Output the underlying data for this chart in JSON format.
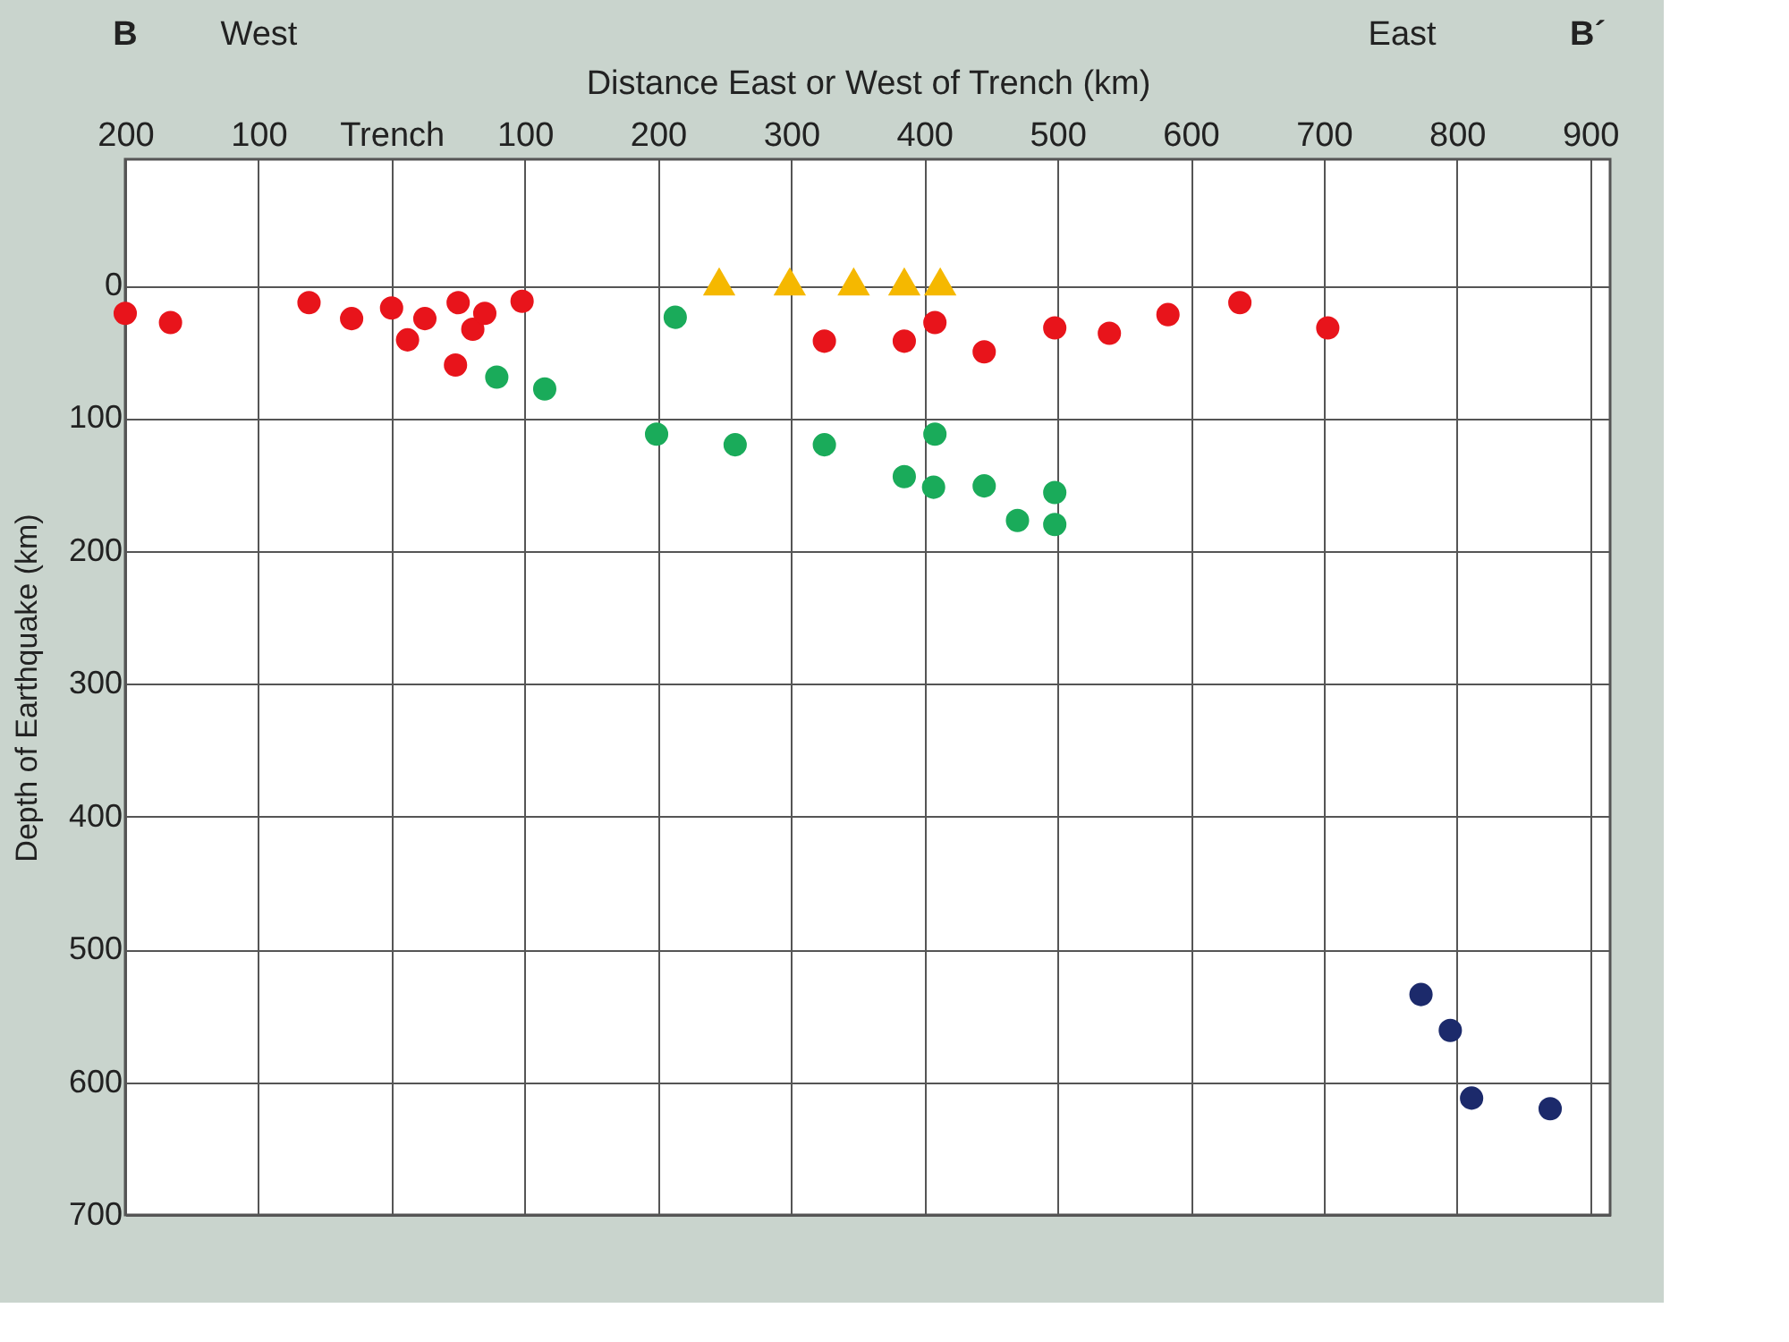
{
  "chart_data": {
    "type": "scatter",
    "xlabel": "Distance East or West of Trench (km)",
    "ylabel": "Depth of Earthquake (km)",
    "annotations": [
      "B",
      "West",
      "East",
      "B´"
    ],
    "xlim": [
      -200,
      915
    ],
    "ylim": [
      700,
      -95
    ],
    "xticks": [
      {
        "value": -200,
        "label": "200"
      },
      {
        "value": -100,
        "label": "100"
      },
      {
        "value": 0,
        "label": "Trench"
      },
      100,
      200,
      300,
      400,
      500,
      600,
      700,
      800,
      900
    ],
    "yticks": [
      0,
      100,
      200,
      300,
      400,
      500,
      600,
      700
    ],
    "grid": true,
    "series": [
      {
        "color": "#e8141b",
        "marker": "circle",
        "x": [
          -200,
          -166,
          -62,
          -30,
          0,
          12,
          25,
          48,
          50,
          61,
          70,
          98,
          325,
          385,
          408,
          445,
          498,
          539,
          583,
          637,
          703
        ],
        "values": [
          21,
          28,
          13,
          25,
          17,
          41,
          25,
          60,
          13,
          33,
          21,
          12,
          42,
          42,
          28,
          50,
          32,
          36,
          22,
          13,
          32
        ]
      },
      {
        "color": "#1aab5a",
        "marker": "circle",
        "x": [
          79,
          115,
          213,
          199,
          258,
          325,
          385,
          408,
          407,
          445,
          470,
          498,
          498
        ],
        "values": [
          69,
          78,
          24,
          112,
          120,
          120,
          144,
          112,
          152,
          151,
          177,
          156,
          180
        ]
      },
      {
        "color": "#1c2a6b",
        "marker": "circle",
        "x": [
          773,
          795,
          811,
          870
        ],
        "values": [
          534,
          561,
          612,
          620
        ]
      },
      {
        "color": "#f5b800",
        "marker": "triangle",
        "x": [
          246,
          299,
          347,
          385,
          412
        ],
        "values": [
          -3,
          -3,
          -3,
          -3,
          -3
        ]
      }
    ]
  }
}
